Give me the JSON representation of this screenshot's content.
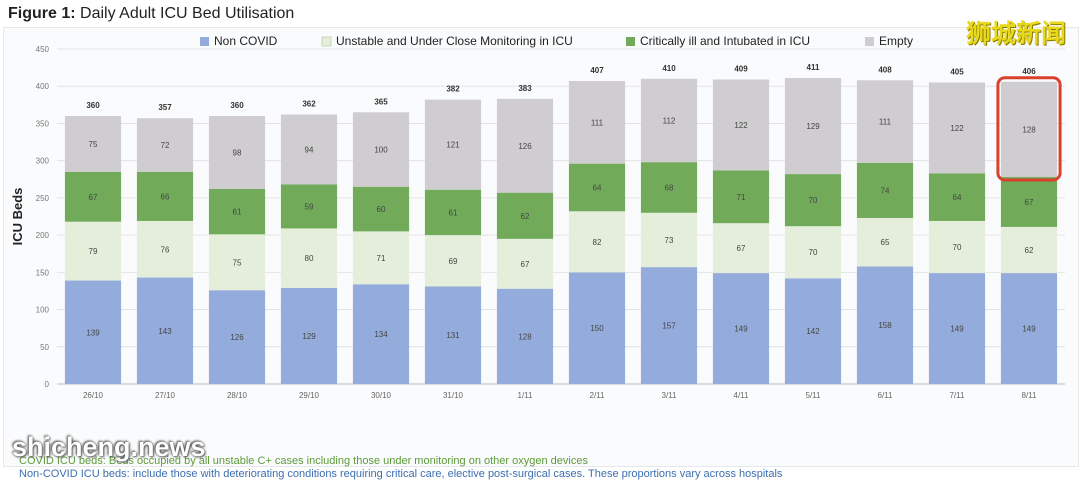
{
  "figure": {
    "label": "Figure 1:",
    "title": "Daily Adult ICU Bed Utilisation"
  },
  "chart_data": {
    "type": "bar",
    "stacked": true,
    "title": "Daily Adult ICU Bed Utilisation",
    "xlabel": "",
    "ylabel": "ICU Beds",
    "ylim": [
      0,
      450
    ],
    "yticks": [
      0,
      50,
      100,
      150,
      200,
      250,
      300,
      350,
      400,
      450
    ],
    "categories": [
      "26/10",
      "27/10",
      "28/10",
      "29/10",
      "30/10",
      "31/10",
      "1/11",
      "2/11",
      "3/11",
      "4/11",
      "5/11",
      "6/11",
      "7/11",
      "8/11"
    ],
    "series": [
      {
        "name": "Non COVID",
        "color": "#94acdc",
        "values": [
          139,
          143,
          126,
          129,
          134,
          131,
          128,
          150,
          157,
          149,
          142,
          158,
          149,
          149
        ]
      },
      {
        "name": "Unstable and Under Close Monitoring in ICU",
        "color": "#e4eedb",
        "values": [
          79,
          76,
          75,
          80,
          71,
          69,
          67,
          82,
          73,
          67,
          70,
          65,
          70,
          62
        ]
      },
      {
        "name": "Critically ill and Intubated in ICU",
        "color": "#71ab5a",
        "values": [
          67,
          66,
          61,
          59,
          60,
          61,
          62,
          64,
          68,
          71,
          70,
          74,
          64,
          67
        ]
      },
      {
        "name": "Empty",
        "color": "#cfcdcf",
        "values": [
          75,
          72,
          98,
          94,
          100,
          121,
          126,
          111,
          112,
          122,
          129,
          111,
          122,
          128
        ]
      }
    ],
    "totals": [
      360,
      357,
      360,
      362,
      365,
      382,
      383,
      407,
      410,
      409,
      411,
      408,
      405,
      406
    ],
    "legend_position": "top",
    "highlight": {
      "category": "8/11",
      "series": "Empty",
      "color": "#d9412c"
    }
  },
  "notes": [
    "COVID ICU beds: Beds occupied by all unstable C+ cases including those under monitoring on other oxygen devices",
    "Non-COVID ICU beds: include those with deteriorating conditions requiring critical care, elective post-surgical cases. These proportions vary across hospitals"
  ],
  "watermarks": {
    "cn": "狮城新闻",
    "site": "shicheng.news"
  }
}
